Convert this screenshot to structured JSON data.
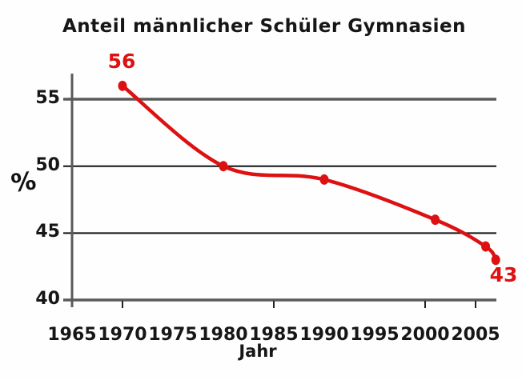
{
  "chart_data": {
    "type": "line",
    "title": "Anteil männlicher Schüler Gymnasien",
    "xlabel": "Jahr",
    "ylabel": "%",
    "series": [
      {
        "name": "Anteil männlicher Schüler Gymnasien (%)",
        "x": [
          1970,
          1980,
          1990,
          2001,
          2006,
          2007
        ],
        "values": [
          56,
          50,
          49,
          46,
          44,
          43
        ]
      }
    ],
    "x_tick_labels": [
      "1965",
      "1970",
      "1975",
      "1980",
      "1985",
      "1990",
      "1995",
      "2000",
      "2005"
    ],
    "y_tick_labels": [
      "55",
      "50",
      "45",
      "40"
    ],
    "x_axis_tick_marks_at": [
      1970,
      1985,
      2000,
      2005
    ],
    "grid_values": [
      55,
      50,
      45
    ],
    "xlim": [
      1965,
      2007.5
    ],
    "ylim": [
      40,
      57
    ],
    "legend": "none",
    "grid": "horizontal-only",
    "annotations": [
      {
        "text": "56",
        "x": 1970,
        "y": 56,
        "position": "above-point",
        "color": "#dd1111"
      },
      {
        "text": "43",
        "x": 2007,
        "y": 43,
        "position": "below-right-of-point",
        "color": "#dd1111"
      }
    ],
    "colors": {
      "line": "#dd1111",
      "marker": "#dd1111",
      "grid_minor_lines": "#111111",
      "axis_lines": "#5a5a5a",
      "text": "#161616"
    }
  }
}
